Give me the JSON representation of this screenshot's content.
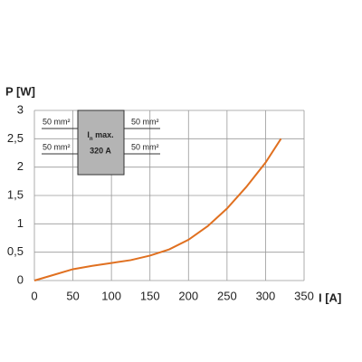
{
  "chart_data": {
    "type": "line",
    "y_label": "P [W]",
    "x_label": "I [A]",
    "x": [
      0,
      25,
      50,
      75,
      100,
      125,
      150,
      175,
      200,
      225,
      250,
      275,
      300,
      320
    ],
    "series": [
      {
        "name": null,
        "color": "#e07020",
        "values": [
          0,
          0.1,
          0.2,
          0.26,
          0.31,
          0.36,
          0.44,
          0.55,
          0.72,
          0.96,
          1.27,
          1.65,
          2.08,
          2.5
        ]
      }
    ],
    "xlim": [
      0,
      350
    ],
    "xticks": [
      0,
      50,
      100,
      150,
      200,
      250,
      300,
      350
    ],
    "ylim": [
      0,
      3
    ],
    "yticks": [
      0,
      {
        "value": 0.5,
        "label": "0,5"
      },
      1,
      {
        "value": 1.5,
        "label": "1,5"
      },
      2,
      {
        "value": 2.5,
        "label": "2,5"
      },
      3
    ],
    "grid": true,
    "inset": {
      "current_symbol": "I",
      "current_subscript": "n",
      "current_suffix": " max.",
      "rating": "320 A",
      "cross_sections": [
        "50 mm²",
        "50 mm²",
        "50 mm²",
        "50 mm²"
      ]
    }
  }
}
